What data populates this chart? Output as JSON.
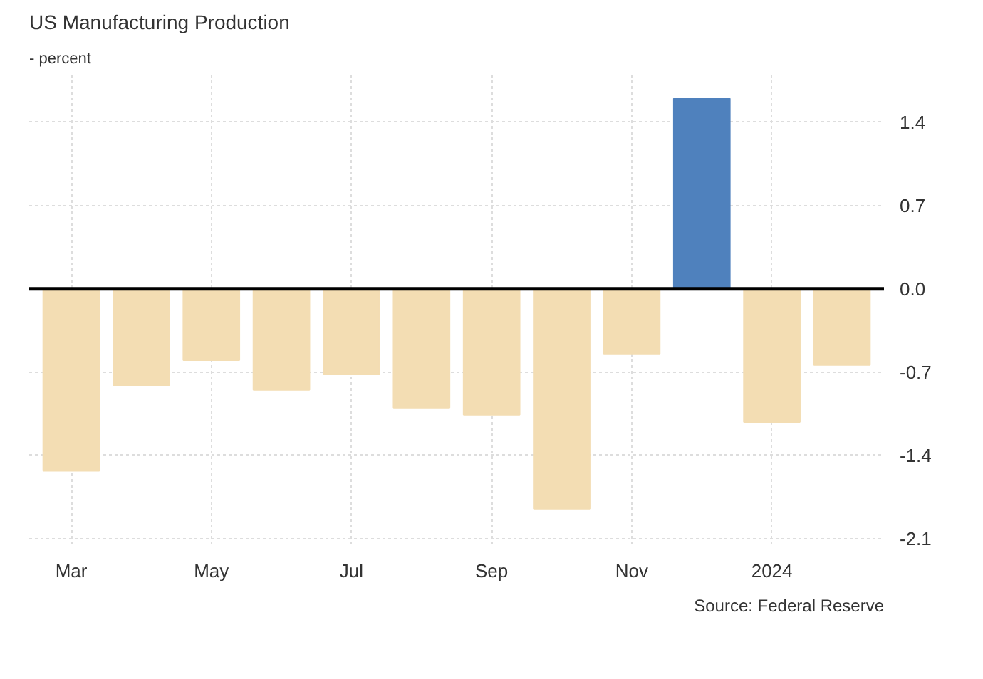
{
  "chart_data": {
    "type": "bar",
    "title": "US Manufacturing Production",
    "subtitle": "- percent",
    "categories": [
      "Mar",
      null,
      "May",
      null,
      "Jul",
      null,
      "Sep",
      null,
      "Nov",
      null,
      "2024",
      null
    ],
    "values": [
      -1.53,
      -0.81,
      -0.6,
      -0.85,
      -0.72,
      -1.0,
      -1.06,
      -1.85,
      -0.55,
      1.6,
      -1.12,
      -0.64
    ],
    "colors": [
      "#f3ddb3",
      "#f3ddb3",
      "#f3ddb3",
      "#f3ddb3",
      "#f3ddb3",
      "#f3ddb3",
      "#f3ddb3",
      "#f3ddb3",
      "#f3ddb3",
      "#4f81bd",
      "#f3ddb3",
      "#f3ddb3"
    ],
    "ylim": [
      -2.15,
      1.8
    ],
    "yticks": [
      -2.1,
      -1.4,
      -0.7,
      {
        "value": 0,
        "label": "0.0"
      },
      0.7,
      1.4
    ],
    "ref_lines": [
      {
        "axis": "y",
        "value": 0,
        "color": "#000000"
      }
    ],
    "grid": true,
    "annotations": [
      "Source: Federal Reserve"
    ]
  }
}
